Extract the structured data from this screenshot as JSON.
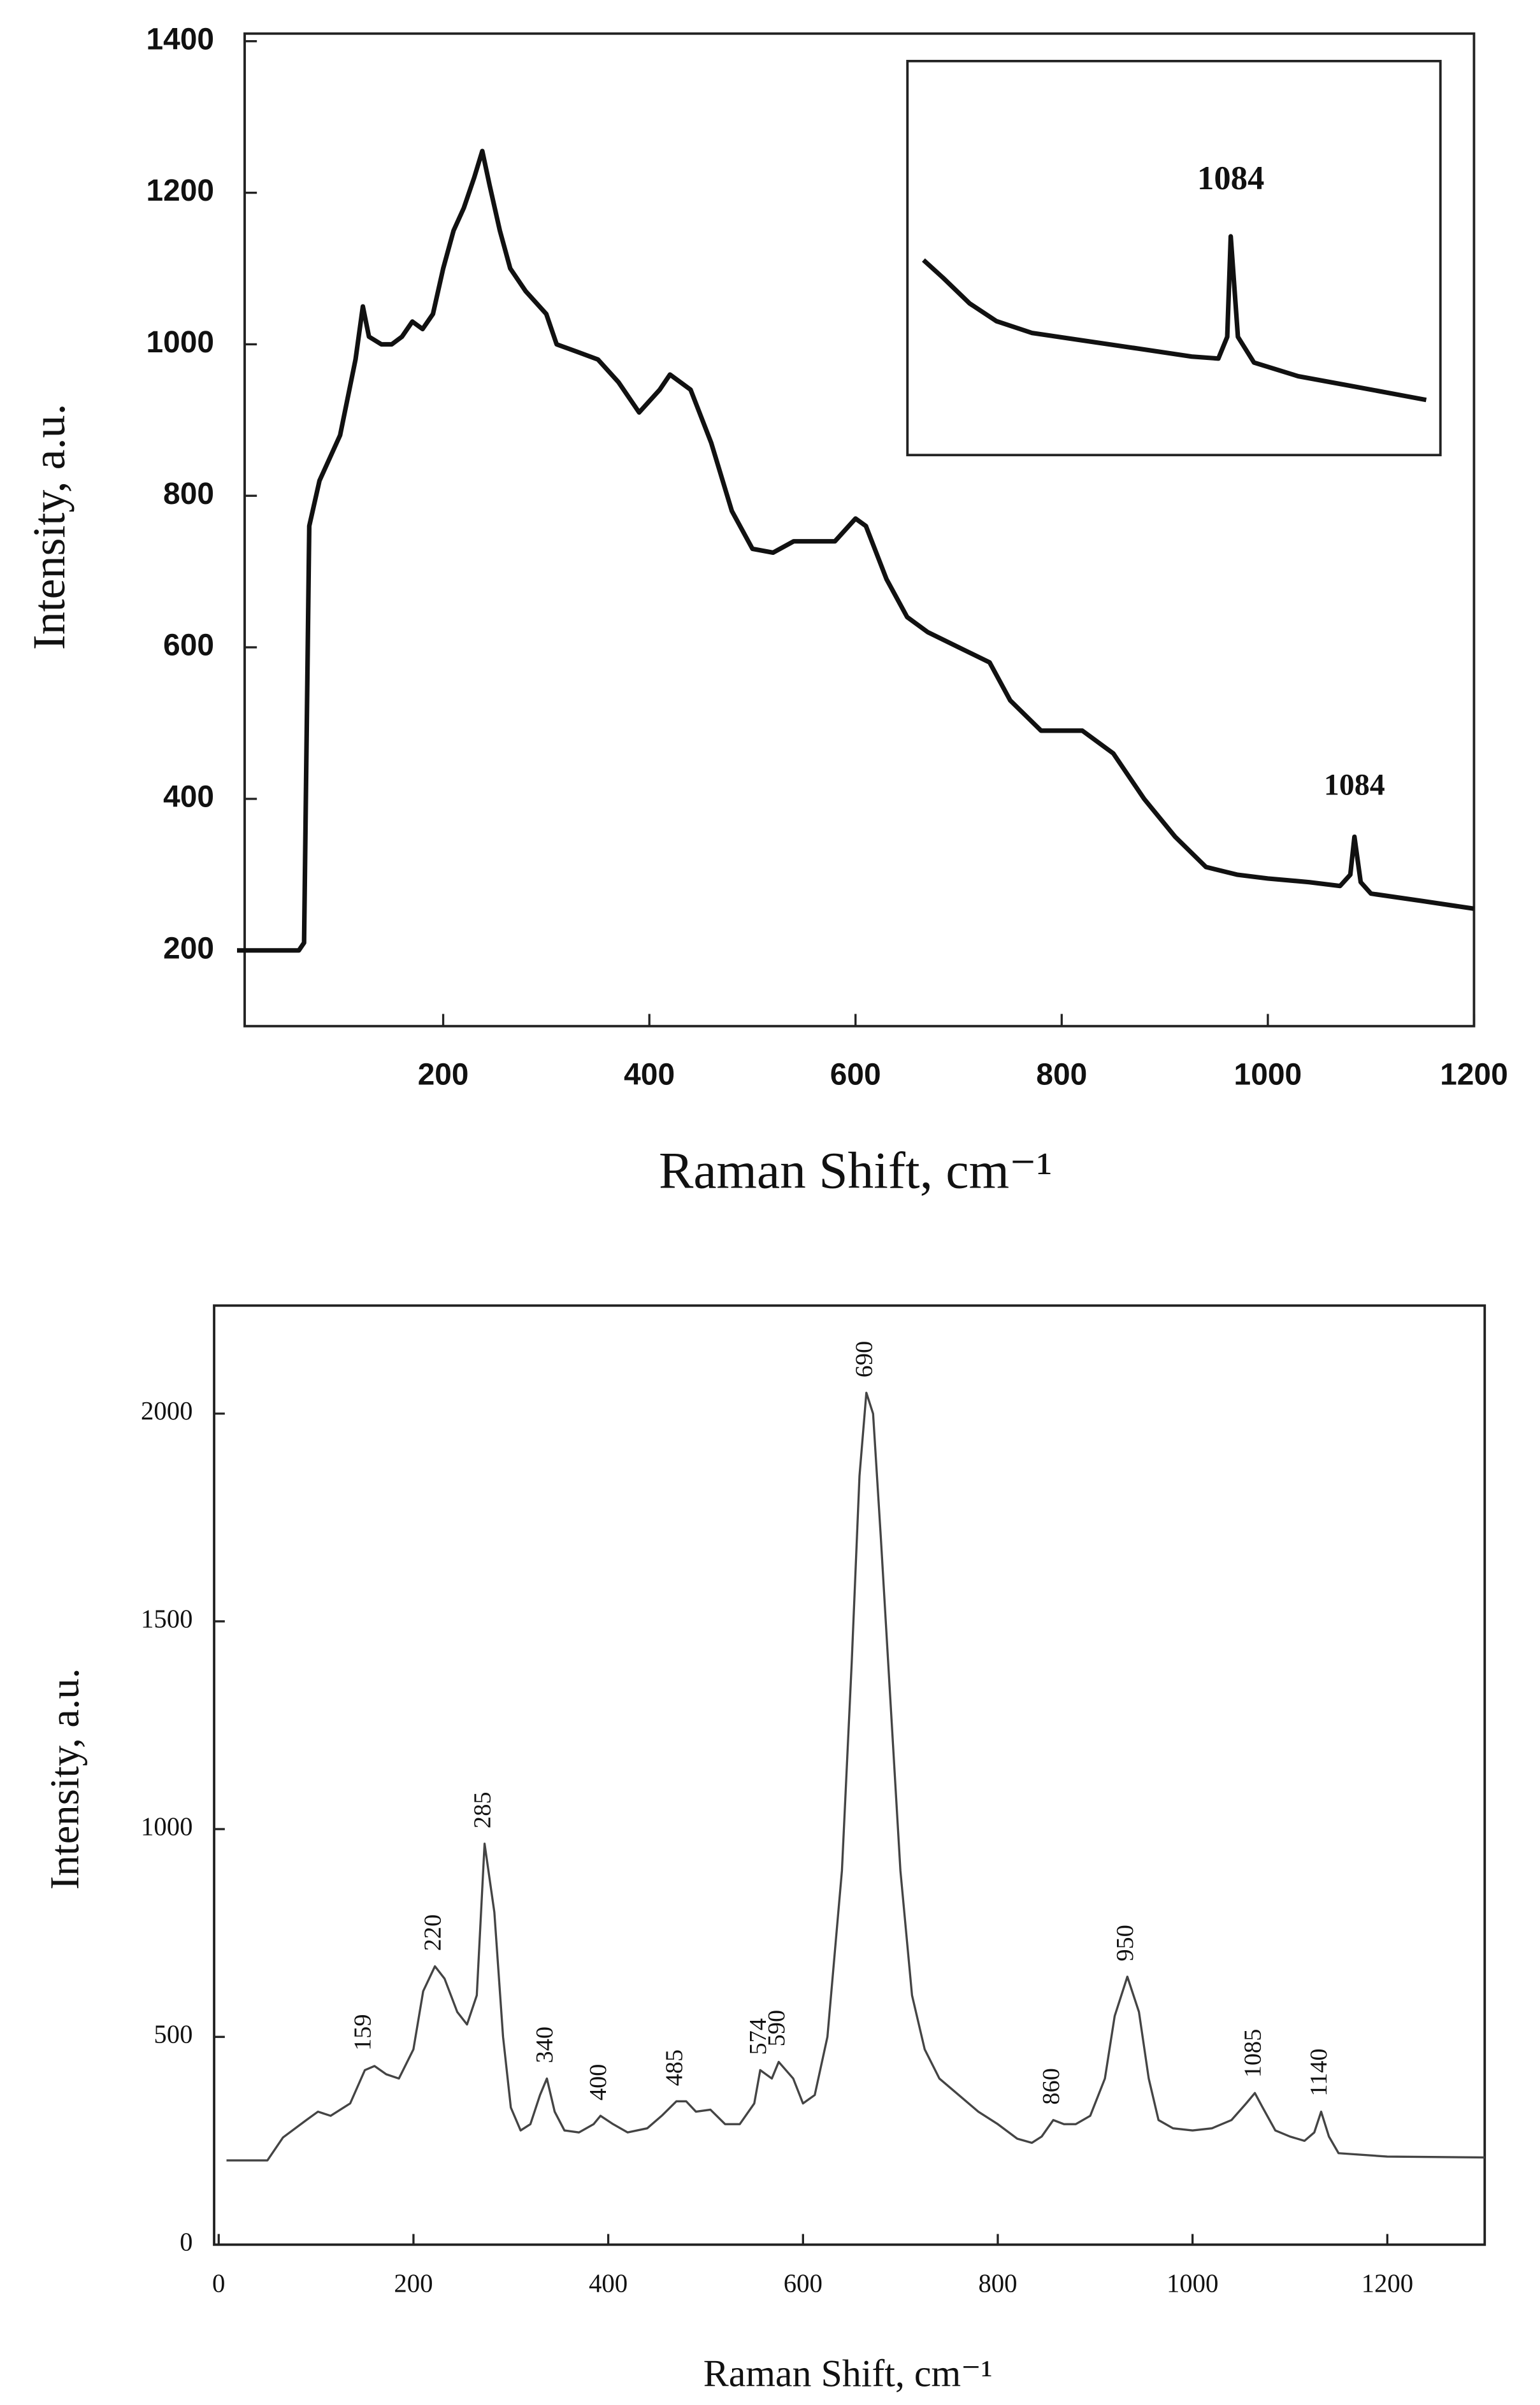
{
  "chart_data": [
    {
      "type": "line",
      "xlabel": "Raman Shift, cm⁻¹",
      "ylabel": "Intensity, a.u.",
      "color": "#111111",
      "xlim": [
        0,
        1200
      ],
      "ylim": [
        100,
        1400
      ],
      "xticks": [
        200,
        400,
        600,
        800,
        1000,
        1200
      ],
      "yticks": [
        200,
        400,
        600,
        800,
        1000,
        1200,
        1400
      ],
      "x": [
        0,
        60,
        65,
        70,
        80,
        100,
        115,
        122,
        128,
        140,
        150,
        160,
        170,
        180,
        190,
        200,
        210,
        220,
        230,
        238,
        245,
        255,
        265,
        280,
        300,
        310,
        330,
        350,
        370,
        390,
        410,
        420,
        440,
        460,
        480,
        500,
        520,
        540,
        560,
        580,
        600,
        610,
        630,
        650,
        670,
        700,
        730,
        750,
        780,
        800,
        820,
        850,
        880,
        910,
        940,
        970,
        1000,
        1040,
        1070,
        1080,
        1084,
        1090,
        1100,
        1150,
        1200
      ],
      "values": [
        200,
        200,
        210,
        760,
        820,
        880,
        980,
        1050,
        1010,
        1000,
        1000,
        1010,
        1030,
        1020,
        1040,
        1100,
        1150,
        1180,
        1220,
        1255,
        1210,
        1150,
        1100,
        1070,
        1040,
        1000,
        990,
        980,
        950,
        910,
        940,
        960,
        940,
        870,
        780,
        730,
        725,
        740,
        740,
        740,
        770,
        760,
        690,
        640,
        620,
        600,
        580,
        530,
        490,
        490,
        490,
        460,
        400,
        350,
        310,
        300,
        295,
        290,
        285,
        300,
        350,
        290,
        275,
        265,
        255
      ],
      "annotations": [
        {
          "label": "1084",
          "x": 1084,
          "y": 350
        }
      ]
    },
    {
      "type": "line",
      "color": "#111111",
      "xlim": [
        900,
        1200
      ],
      "ylim": [
        200,
        400
      ],
      "x": [
        909,
        920,
        935,
        950,
        970,
        1000,
        1030,
        1060,
        1075,
        1080,
        1082,
        1086,
        1095,
        1120,
        1150,
        1180,
        1192
      ],
      "values": [
        299,
        290,
        277,
        268,
        262,
        258,
        254,
        250,
        249,
        260,
        311,
        260,
        247,
        240,
        235,
        230,
        228
      ],
      "annotations": [
        {
          "label": "1084",
          "x": 1082,
          "y": 311
        }
      ]
    },
    {
      "type": "line",
      "xlabel": "Raman Shift, cm⁻¹",
      "ylabel": "Intensity, a.u.",
      "color": "#444444",
      "xlim": [
        0,
        1300
      ],
      "ylim": [
        0,
        2260
      ],
      "xticks": [
        0,
        200,
        400,
        600,
        800,
        1000,
        1200
      ],
      "yticks": [
        0,
        500,
        1000,
        1500,
        2000
      ],
      "x": [
        8,
        50,
        66,
        90,
        102,
        115,
        135,
        150,
        160,
        172,
        185,
        200,
        210,
        222,
        232,
        245,
        255,
        265,
        273,
        283,
        292,
        300,
        310,
        320,
        330,
        337,
        345,
        355,
        370,
        385,
        392,
        405,
        420,
        440,
        455,
        470,
        480,
        490,
        505,
        520,
        535,
        550,
        556,
        568,
        575,
        590,
        600,
        612,
        625,
        640,
        650,
        658,
        665,
        672,
        680,
        690,
        700,
        712,
        725,
        740,
        760,
        780,
        800,
        820,
        835,
        845,
        857,
        868,
        880,
        895,
        910,
        920,
        933,
        945,
        955,
        965,
        980,
        1000,
        1020,
        1040,
        1055,
        1064,
        1072,
        1085,
        1100,
        1115,
        1125,
        1132,
        1140,
        1150,
        1200,
        1300
      ],
      "values": [
        203,
        203,
        258,
        300,
        320,
        310,
        340,
        420,
        430,
        410,
        400,
        470,
        610,
        670,
        640,
        560,
        530,
        600,
        965,
        800,
        500,
        330,
        275,
        290,
        360,
        400,
        320,
        275,
        270,
        290,
        310,
        290,
        270,
        280,
        310,
        345,
        345,
        320,
        325,
        290,
        290,
        340,
        420,
        400,
        440,
        400,
        340,
        360,
        500,
        900,
        1400,
        1850,
        2050,
        2000,
        1700,
        1300,
        900,
        600,
        470,
        400,
        360,
        320,
        290,
        255,
        245,
        260,
        300,
        290,
        290,
        310,
        400,
        550,
        645,
        560,
        400,
        300,
        280,
        275,
        280,
        300,
        340,
        365,
        330,
        275,
        260,
        250,
        270,
        320,
        260,
        220,
        212,
        210
      ],
      "annotations": [
        {
          "label": "159",
          "x": 150,
          "y": 430
        },
        {
          "label": "220",
          "x": 222,
          "y": 670
        },
        {
          "label": "285",
          "x": 273,
          "y": 965
        },
        {
          "label": "340",
          "x": 337,
          "y": 400
        },
        {
          "label": "400",
          "x": 392,
          "y": 310
        },
        {
          "label": "485",
          "x": 470,
          "y": 345
        },
        {
          "label": "574",
          "x": 556,
          "y": 420
        },
        {
          "label": "590",
          "x": 575,
          "y": 440
        },
        {
          "label": "690",
          "x": 665,
          "y": 2050
        },
        {
          "label": "860",
          "x": 857,
          "y": 300
        },
        {
          "label": "950",
          "x": 933,
          "y": 645
        },
        {
          "label": "1085",
          "x": 1064,
          "y": 365
        },
        {
          "label": "1140",
          "x": 1132,
          "y": 320
        }
      ]
    }
  ]
}
